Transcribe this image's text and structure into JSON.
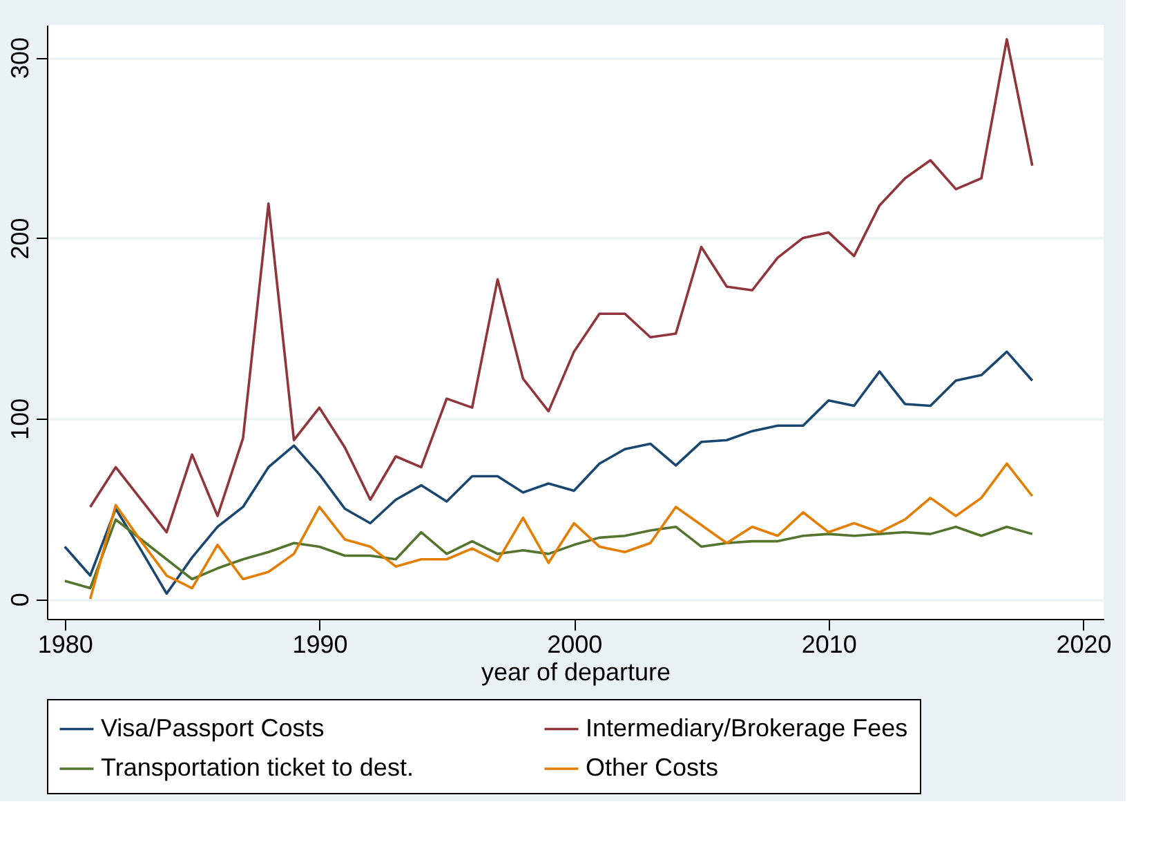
{
  "chart_data": {
    "type": "line",
    "xlabel": "year of departure",
    "x": [
      1980,
      1981,
      1982,
      1983,
      1984,
      1985,
      1986,
      1987,
      1988,
      1989,
      1990,
      1991,
      1992,
      1993,
      1994,
      1995,
      1996,
      1997,
      1998,
      1999,
      2000,
      2001,
      2002,
      2003,
      2004,
      2005,
      2006,
      2007,
      2008,
      2009,
      2010,
      2011,
      2012,
      2013,
      2014,
      2015,
      2016,
      2017,
      2018
    ],
    "series": [
      {
        "name": "Visa/Passport Costs",
        "color": "#1a476f",
        "values": [
          29,
          13,
          50,
          27,
          3,
          23,
          40,
          51,
          73,
          85,
          69,
          50,
          42,
          55,
          63,
          54,
          68,
          68,
          59,
          64,
          60,
          75,
          83,
          86,
          74,
          87,
          88,
          93,
          96,
          96,
          110,
          107,
          126,
          108,
          107,
          121,
          124,
          137,
          121
        ]
      },
      {
        "name": "Intermediary/Brokerage Fees",
        "color": "#90353b",
        "values": [
          null,
          51,
          73,
          55,
          37,
          80,
          46,
          89,
          219,
          88,
          106,
          84,
          55,
          79,
          73,
          111,
          106,
          177,
          122,
          104,
          137,
          158,
          158,
          145,
          147,
          195,
          173,
          171,
          189,
          200,
          203,
          190,
          218,
          233,
          243,
          227,
          233,
          310,
          240
        ]
      },
      {
        "name": "Transportation ticket to dest.",
        "color": "#55752f",
        "values": [
          10,
          6,
          44,
          33,
          22,
          11,
          17,
          22,
          26,
          31,
          29,
          24,
          24,
          22,
          37,
          25,
          32,
          25,
          27,
          25,
          30,
          34,
          35,
          38,
          40,
          29,
          31,
          32,
          32,
          35,
          36,
          35,
          36,
          37,
          36,
          40,
          35,
          40,
          36
        ]
      },
      {
        "name": "Other Costs",
        "color": "#e37e00",
        "values": [
          null,
          0,
          52,
          32,
          13,
          6,
          30,
          11,
          15,
          25,
          51,
          33,
          29,
          18,
          22,
          22,
          28,
          21,
          45,
          20,
          42,
          29,
          26,
          31,
          51,
          41,
          31,
          40,
          35,
          48,
          37,
          42,
          37,
          44,
          56,
          46,
          56,
          75,
          57
        ]
      }
    ],
    "xlim": [
      1979.3,
      2020.8
    ],
    "xticks": [
      1980,
      1990,
      2000,
      2010,
      2020
    ],
    "ylim": [
      -11,
      318
    ],
    "yticks": [
      0,
      100,
      200,
      300
    ],
    "grid": "y",
    "legend": "bottom",
    "marker": "none",
    "line_style": "solid"
  }
}
